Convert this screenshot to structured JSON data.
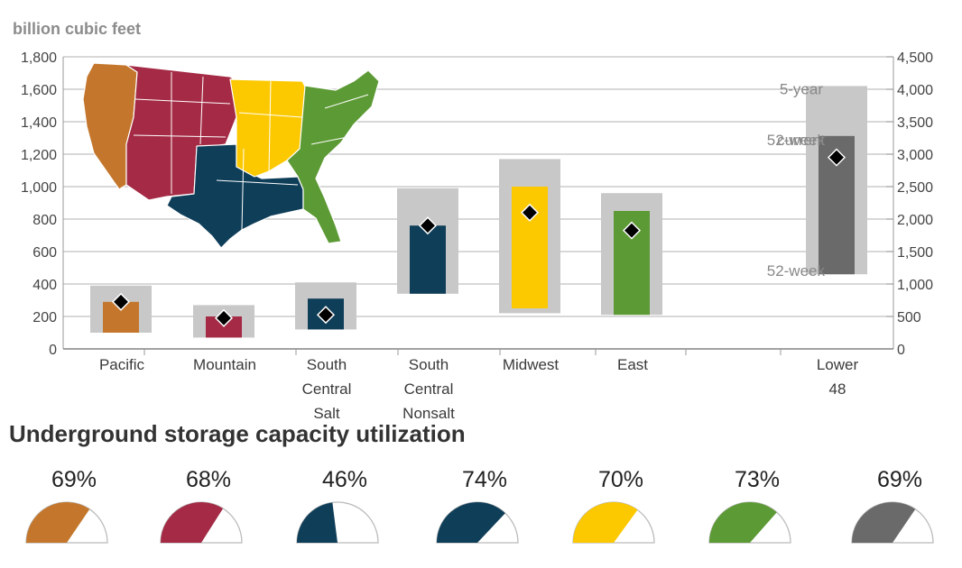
{
  "chart_data": [
    {
      "type": "bar",
      "ylabel": "billion cubic feet",
      "ylim": [
        0,
        1800
      ],
      "yticks": [
        "0",
        "200",
        "400",
        "600",
        "800",
        "1,000",
        "1,200",
        "1,400",
        "1,600",
        "1,800"
      ],
      "y2lim": [
        0,
        4500
      ],
      "y2ticks": [
        "0",
        "500",
        "1,000",
        "1,500",
        "2,000",
        "2,500",
        "3,000",
        "3,500",
        "4,000",
        "4,500"
      ],
      "grid": true,
      "annotations": [
        "5-year",
        "52-week",
        "current",
        "52-week"
      ],
      "regions": [
        {
          "label": [
            "Pacific"
          ],
          "color": "#c4772c",
          "axis": "left",
          "range_5yr": [
            100,
            390
          ],
          "range_52wk": [
            100,
            290
          ],
          "current": 290
        },
        {
          "label": [
            "Mountain"
          ],
          "color": "#a42a45",
          "axis": "left",
          "range_5yr": [
            70,
            270
          ],
          "range_52wk": [
            70,
            200
          ],
          "current": 190
        },
        {
          "label": [
            "South",
            "Central",
            "Salt"
          ],
          "color": "#0f3e59",
          "axis": "left",
          "range_5yr": [
            120,
            410
          ],
          "range_52wk": [
            120,
            310
          ],
          "current": 210
        },
        {
          "label": [
            "South",
            "Central",
            "Nonsalt"
          ],
          "color": "#0f3e59",
          "axis": "left",
          "range_5yr": [
            340,
            990
          ],
          "range_52wk": [
            340,
            760
          ],
          "current": 760
        },
        {
          "label": [
            "Midwest"
          ],
          "color": "#fcc800",
          "axis": "left",
          "range_5yr": [
            220,
            1170
          ],
          "range_52wk": [
            250,
            1000
          ],
          "current": 840
        },
        {
          "label": [
            "East"
          ],
          "color": "#5c9a35",
          "axis": "left",
          "range_5yr": [
            210,
            960
          ],
          "range_52wk": [
            210,
            850
          ],
          "current": 730
        },
        {
          "label": [
            "Lower",
            "48"
          ],
          "color": "#6a6a6a",
          "axis": "right",
          "range_5yr": [
            1150,
            4050
          ],
          "range_52wk": [
            1150,
            3280
          ],
          "current": 2950
        }
      ]
    },
    {
      "type": "gauge",
      "title": "Underground storage capacity utilization",
      "gauges": [
        {
          "label": "69%",
          "value": 0.69,
          "color": "#c4772c"
        },
        {
          "label": "68%",
          "value": 0.68,
          "color": "#a42a45"
        },
        {
          "label": "46%",
          "value": 0.46,
          "color": "#0f3e59"
        },
        {
          "label": "74%",
          "value": 0.74,
          "color": "#0f3e59"
        },
        {
          "label": "70%",
          "value": 0.7,
          "color": "#fcc800"
        },
        {
          "label": "73%",
          "value": 0.73,
          "color": "#5c9a35"
        },
        {
          "label": "69%",
          "value": 0.69,
          "color": "#6a6a6a"
        }
      ]
    }
  ],
  "map": {
    "regions": [
      {
        "name": "Pacific",
        "color": "#c4772c"
      },
      {
        "name": "Mountain",
        "color": "#a42a45"
      },
      {
        "name": "South Central",
        "color": "#0f3e59"
      },
      {
        "name": "Midwest",
        "color": "#fcc800"
      },
      {
        "name": "East",
        "color": "#5c9a35"
      }
    ]
  },
  "colors": {
    "range_5yr": "#c8c8c8",
    "gridline": "#c0c0c0",
    "marker": "#000000"
  }
}
